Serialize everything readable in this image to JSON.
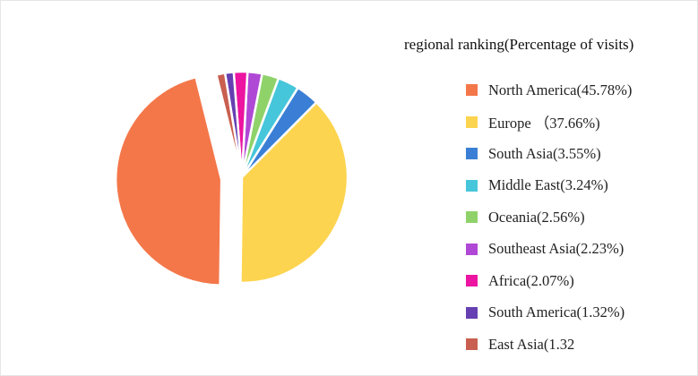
{
  "chart_data": {
    "type": "pie",
    "title": "regional ranking(Percentage of visits)",
    "series": [
      {
        "name": "North America",
        "label": "North America(45.78%)",
        "value": 45.78,
        "color": "#f4774a"
      },
      {
        "name": "Europe",
        "label": "Europe （37.66%)",
        "value": 37.66,
        "color": "#fdd44f"
      },
      {
        "name": "South Asia",
        "label": "South Asia(3.55%)",
        "value": 3.55,
        "color": "#3a7fd5"
      },
      {
        "name": "Middle East",
        "label": "Middle East(3.24%)",
        "value": 3.24,
        "color": "#46c6da"
      },
      {
        "name": "Oceania",
        "label": "Oceania(2.56%)",
        "value": 2.56,
        "color": "#8fd26a"
      },
      {
        "name": "Southeast Asia",
        "label": "Southeast Asia(2.23%)",
        "value": 2.23,
        "color": "#b048d6"
      },
      {
        "name": "Africa",
        "label": "Africa(2.07%)",
        "value": 2.07,
        "color": "#ec14a0"
      },
      {
        "name": "South America",
        "label": "South America(1.32%)",
        "value": 1.32,
        "color": "#6640b2"
      },
      {
        "name": "East Asia",
        "label": "East Asia(1.32",
        "value": 1.32,
        "color": "#c95f50"
      }
    ],
    "legend_position": "right",
    "exploded_slice": "North America",
    "grid": false
  }
}
